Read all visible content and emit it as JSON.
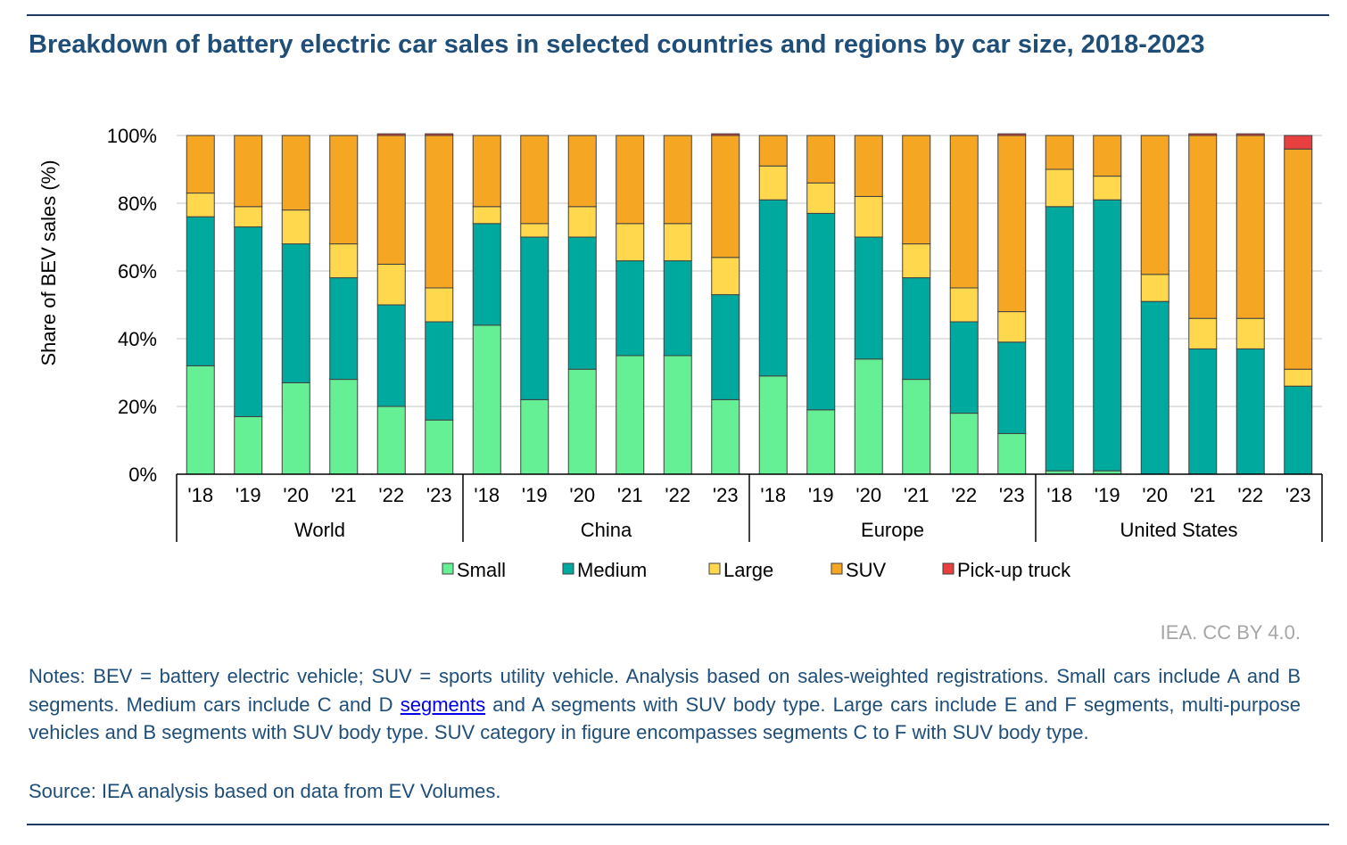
{
  "title": "Breakdown of battery electric car sales in selected countries and regions by car size, 2018-2023",
  "credit": "IEA. CC BY 4.0.",
  "notes": {
    "part1": "Notes: BEV = battery electric vehicle; SUV = sports utility vehicle. Analysis based on sales-weighted registrations. Small cars include A and B segments. Medium cars include C and D ",
    "link": "segments",
    "part2": " and A segments with SUV body type. Large cars include E and F segments, multi-purpose vehicles and B segments with SUV body type. SUV category in figure encompasses segments C to F with SUV body type."
  },
  "source": "Source: IEA analysis based on data from EV Volumes.",
  "chart_data": {
    "type": "bar",
    "stacked": true,
    "ylabel": "Share of BEV sales (%)",
    "ylim": [
      0,
      100
    ],
    "yticks": [
      "0%",
      "20%",
      "40%",
      "60%",
      "80%",
      "100%"
    ],
    "grid": true,
    "legend_position": "bottom",
    "groups": [
      "World",
      "China",
      "Europe",
      "United States"
    ],
    "years": [
      "'18",
      "'19",
      "'20",
      "'21",
      "'22",
      "'23"
    ],
    "series": [
      {
        "name": "Small",
        "color": "#66f096",
        "values": [
          [
            32,
            17,
            27,
            28,
            20,
            16
          ],
          [
            44,
            22,
            31,
            35,
            35,
            22
          ],
          [
            29,
            19,
            34,
            28,
            18,
            12
          ],
          [
            1,
            1,
            0,
            0,
            0,
            0
          ]
        ]
      },
      {
        "name": "Medium",
        "color": "#00a99d",
        "values": [
          [
            44,
            56,
            41,
            30,
            30,
            29
          ],
          [
            30,
            48,
            39,
            28,
            28,
            31
          ],
          [
            52,
            58,
            36,
            30,
            27,
            27
          ],
          [
            78,
            80,
            51,
            37,
            37,
            26
          ]
        ]
      },
      {
        "name": "Large",
        "color": "#ffd84d",
        "values": [
          [
            7,
            6,
            10,
            10,
            12,
            10
          ],
          [
            5,
            4,
            9,
            11,
            11,
            11
          ],
          [
            10,
            9,
            12,
            10,
            10,
            9
          ],
          [
            11,
            7,
            8,
            9,
            9,
            5
          ]
        ]
      },
      {
        "name": "SUV",
        "color": "#f5a623",
        "values": [
          [
            17,
            21,
            22,
            32,
            38,
            45
          ],
          [
            21,
            26,
            21,
            26,
            26,
            36
          ],
          [
            9,
            14,
            18,
            32,
            45,
            52
          ],
          [
            10,
            12,
            41,
            54,
            54,
            65
          ]
        ]
      },
      {
        "name": "Pick-up truck",
        "color": "#e8403f",
        "values": [
          [
            0,
            0,
            0,
            0,
            0.5,
            0.5
          ],
          [
            0,
            0,
            0,
            0,
            0,
            0.5
          ],
          [
            0,
            0,
            0,
            0,
            0,
            0.5
          ],
          [
            0,
            0,
            0,
            0.5,
            0.5,
            4
          ]
        ]
      }
    ]
  }
}
